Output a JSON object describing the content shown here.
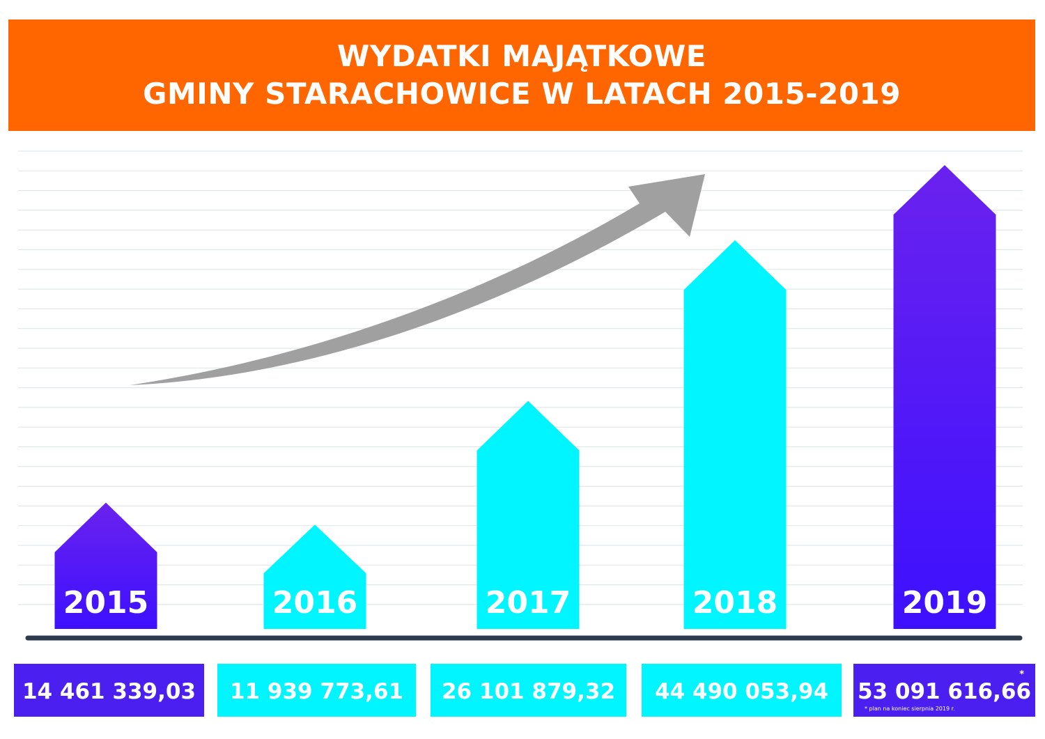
{
  "title": {
    "line1": "WYDATKI MAJĄTKOWE",
    "line2": "GMINY STARACHOWICE W LATACH 2015-2019"
  },
  "colors": {
    "banner": "#ff6600",
    "cyan": "#00f5ff",
    "purple": "#4a1ff0",
    "arrow": "#a0a0a0",
    "baseline": "#2e3b4e",
    "gridline": "#dfe7ea"
  },
  "chart_data": {
    "type": "bar",
    "title": "WYDATKI MAJĄTKOWE GMINY STARACHOWICE W LATACH 2015-2019",
    "categories": [
      "2015",
      "2016",
      "2017",
      "2018",
      "2019"
    ],
    "values": [
      14461339.03,
      11939773.61,
      26101879.32,
      44490053.94,
      53091616.66
    ],
    "value_labels": [
      "14 461 339,03",
      "11 939 773,61",
      "26 101 879,32",
      "44 490 053,94",
      "53 091 616,66"
    ],
    "bar_colors": [
      "purple",
      "cyan",
      "cyan",
      "cyan",
      "purple"
    ],
    "ylim": [
      0,
      55000000
    ],
    "grid": true,
    "legend": "none",
    "annotations": {
      "asterisk": "*",
      "footnote": "plan na koniec sierpnia 2019 r."
    }
  }
}
